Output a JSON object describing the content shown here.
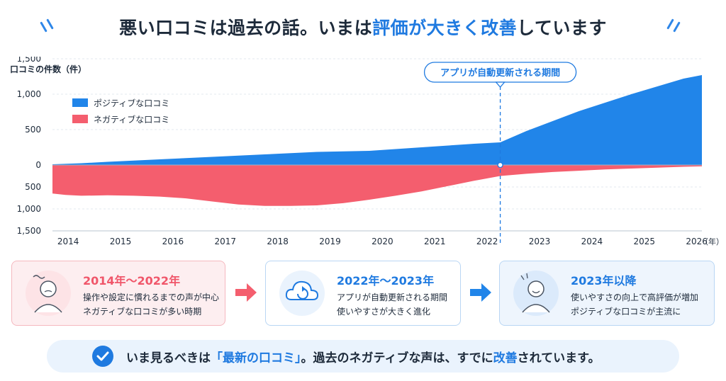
{
  "headline": {
    "part1": "悪い口コミは過去の話。いまは",
    "highlight1": "評価が大きく改善",
    "part2": "しています"
  },
  "colors": {
    "positive": "#2185e9",
    "negative": "#f45e6e",
    "accent": "#1f7ae0"
  },
  "chart_data": {
    "type": "area",
    "ylabel": "口コミの件数（件）",
    "xunit": "（年）",
    "x_ticks": [
      2014,
      2015,
      2016,
      2017,
      2018,
      2019,
      2020,
      2021,
      2022,
      2023,
      2024,
      2025,
      2026
    ],
    "y_ticks_positive": [
      "1,500",
      "1,000",
      "500",
      "0"
    ],
    "y_ticks_negative": [
      "500",
      "1,000",
      "1,500"
    ],
    "ylim": [
      -1500,
      1500
    ],
    "xlim": [
      2013.95,
      2026.35
    ],
    "legend": {
      "placement": "top-left"
    },
    "series": [
      {
        "name": "ポジティブな口コミ",
        "color": "#2185e9",
        "x": [
          2013.95,
          2014.5,
          2015,
          2016,
          2017,
          2018,
          2019,
          2020,
          2021,
          2022,
          2022.5,
          2023,
          2024,
          2025,
          2025.5,
          2026,
          2026.35
        ],
        "values": [
          10,
          25,
          45,
          80,
          115,
          150,
          185,
          200,
          250,
          300,
          320,
          480,
          760,
          1000,
          1110,
          1220,
          1270
        ]
      },
      {
        "name": "ネガティブな口コミ",
        "color": "#f45e6e",
        "x": [
          2013.95,
          2014.2,
          2014.5,
          2015,
          2015.5,
          2016,
          2016.5,
          2017,
          2017.5,
          2018,
          2018.5,
          2019,
          2019.5,
          2020,
          2020.5,
          2021,
          2021.5,
          2022,
          2022.5,
          2023,
          2023.5,
          2024,
          2024.5,
          2025,
          2025.5,
          2026,
          2026.35
        ],
        "values": [
          -650,
          -680,
          -700,
          -690,
          -700,
          -720,
          -760,
          -830,
          -900,
          -930,
          -930,
          -920,
          -870,
          -790,
          -700,
          -600,
          -480,
          -360,
          -250,
          -200,
          -160,
          -130,
          -100,
          -80,
          -60,
          -40,
          -30
        ]
      }
    ],
    "annotation": {
      "x": 2022.5,
      "label": "アプリが自動更新される期間"
    }
  },
  "steps": [
    {
      "title": "2014年～2022年",
      "line1": "操作や設定に慣れるまでの声が中心",
      "line2": "ネガティブな口コミが多い時期"
    },
    {
      "title": "2022年～2023年",
      "line1": "アプリが自動更新される期間",
      "line2": "使いやすさが大きく進化"
    },
    {
      "title": "2023年以降",
      "line1": "使いやすさの向上で高評価が増加",
      "line2": "ポジティブな口コミが主流に"
    }
  ],
  "bottom": {
    "part1": "いま見るべきは",
    "highlight": "「最新の口コミ」",
    "part2": "。過去のネガティブな声は、すでに",
    "highlight2": "改善",
    "part3": "されています。"
  }
}
